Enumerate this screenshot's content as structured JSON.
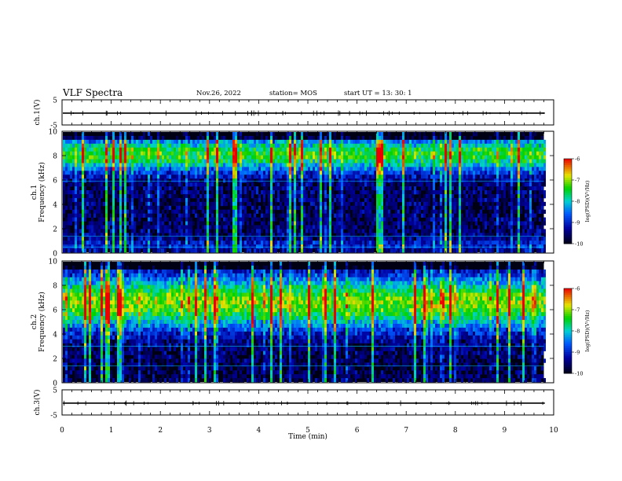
{
  "header": {
    "title": "VLF Spectra",
    "date": "Nov.26, 2022",
    "station": "station= MOS",
    "start": "start  UT  =   13: 30: 1"
  },
  "chart_data": [
    {
      "type": "line",
      "name": "ch1-waveform",
      "ylabel": "ch.1(V)",
      "ylim": [
        -5,
        5
      ],
      "yticks": [
        5,
        -5
      ],
      "xlim": [
        0,
        10
      ],
      "baseline": -0.3
    },
    {
      "type": "heatmap",
      "name": "ch1-spectrogram",
      "ylabel": "ch.1\nFrequency (kHz)",
      "ylim": [
        0,
        10
      ],
      "yticks": [
        0,
        2,
        4,
        6,
        8,
        10
      ],
      "xlim": [
        0,
        10
      ],
      "data_end_min": 9.8,
      "colorbar": {
        "label": "log(PSD)(V²/Hz)",
        "range": [
          -10,
          -6
        ],
        "ticks": [
          -6,
          -7,
          -8,
          -9,
          -10
        ]
      }
    },
    {
      "type": "heatmap",
      "name": "ch2-spectrogram",
      "ylabel": "ch.2\nFrequency (kHz)",
      "ylim": [
        0,
        10
      ],
      "yticks": [
        0,
        2,
        4,
        6,
        8,
        10
      ],
      "xlim": [
        0,
        10
      ],
      "data_end_min": 9.8,
      "colorbar": {
        "label": "log(PSD)(V²/Hz)",
        "range": [
          -10,
          -6
        ],
        "ticks": [
          -6,
          -7,
          -8,
          -9,
          -10
        ]
      }
    },
    {
      "type": "line",
      "name": "ch3-waveform",
      "ylabel": "ch.3(V)",
      "ylim": [
        -5,
        5
      ],
      "yticks": [
        5,
        -5
      ],
      "xlim": [
        0,
        10
      ],
      "baseline": -0.3,
      "xlabel": "Time  (min)",
      "xticks": [
        0,
        1,
        2,
        3,
        4,
        5,
        6,
        7,
        8,
        9,
        10
      ]
    }
  ],
  "colors": {
    "axis": "#000000",
    "waveform": "#000000",
    "background": "#ffffff"
  }
}
